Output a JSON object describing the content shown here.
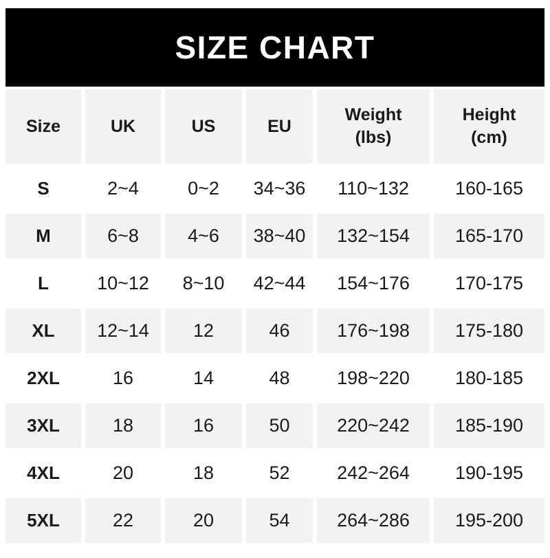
{
  "banner": {
    "title": "SIZE CHART"
  },
  "colors": {
    "banner_bg": "#000000",
    "banner_fg": "#ffffff",
    "alt_row_bg": "#f2f2f2",
    "text": "#1a1a1a",
    "page_bg": "#ffffff"
  },
  "table": {
    "columns": [
      "Size",
      "UK",
      "US",
      "EU",
      "Weight\n(lbs)",
      "Height\n(cm)"
    ],
    "rows": [
      [
        "S",
        "2~4",
        "0~2",
        "34~36",
        "110~132",
        "160-165"
      ],
      [
        "M",
        "6~8",
        "4~6",
        "38~40",
        "132~154",
        "165-170"
      ],
      [
        "L",
        "10~12",
        "8~10",
        "42~44",
        "154~176",
        "170-175"
      ],
      [
        "XL",
        "12~14",
        "12",
        "46",
        "176~198",
        "175-180"
      ],
      [
        "2XL",
        "16",
        "14",
        "48",
        "198~220",
        "180-185"
      ],
      [
        "3XL",
        "18",
        "16",
        "50",
        "220~242",
        "185-190"
      ],
      [
        "4XL",
        "20",
        "18",
        "52",
        "242~264",
        "190-195"
      ],
      [
        "5XL",
        "22",
        "20",
        "54",
        "264~286",
        "195-200"
      ]
    ]
  },
  "chart_data": {
    "type": "table",
    "title": "SIZE CHART",
    "columns": [
      "Size",
      "UK",
      "US",
      "EU",
      "Weight (lbs)",
      "Height (cm)"
    ],
    "rows": [
      [
        "S",
        "2~4",
        "0~2",
        "34~36",
        "110~132",
        "160-165"
      ],
      [
        "M",
        "6~8",
        "4~6",
        "38~40",
        "132~154",
        "165-170"
      ],
      [
        "L",
        "10~12",
        "8~10",
        "42~44",
        "154~176",
        "170-175"
      ],
      [
        "XL",
        "12~14",
        "12",
        "46",
        "176~198",
        "175-180"
      ],
      [
        "2XL",
        "16",
        "14",
        "48",
        "198~220",
        "180-185"
      ],
      [
        "3XL",
        "18",
        "16",
        "50",
        "220~242",
        "185-190"
      ],
      [
        "4XL",
        "20",
        "18",
        "52",
        "242~264",
        "190-195"
      ],
      [
        "5XL",
        "22",
        "20",
        "54",
        "264~286",
        "195-200"
      ]
    ]
  }
}
